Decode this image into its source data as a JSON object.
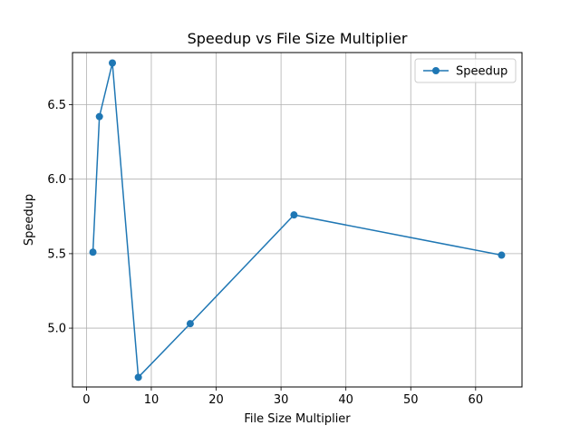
{
  "chart_data": {
    "type": "line",
    "title": "Speedup vs File Size Multiplier",
    "xlabel": "File Size Multiplier",
    "ylabel": "Speedup",
    "xlim": [
      -2.15,
      67.15
    ],
    "ylim": [
      4.605,
      6.85
    ],
    "xticks": [
      0,
      10,
      20,
      30,
      40,
      50,
      60
    ],
    "yticks": [
      5.0,
      5.5,
      6.0,
      6.5
    ],
    "ytick_labels": [
      "5.0",
      "5.5",
      "6.0",
      "6.5"
    ],
    "grid": true,
    "legend_position": "top-right",
    "series": [
      {
        "name": "Speedup",
        "color": "#1f77b4",
        "marker": "circle",
        "x": [
          1,
          2,
          4,
          8,
          16,
          32,
          64
        ],
        "y": [
          5.51,
          6.42,
          6.78,
          4.67,
          5.03,
          5.76,
          5.49
        ]
      }
    ]
  }
}
